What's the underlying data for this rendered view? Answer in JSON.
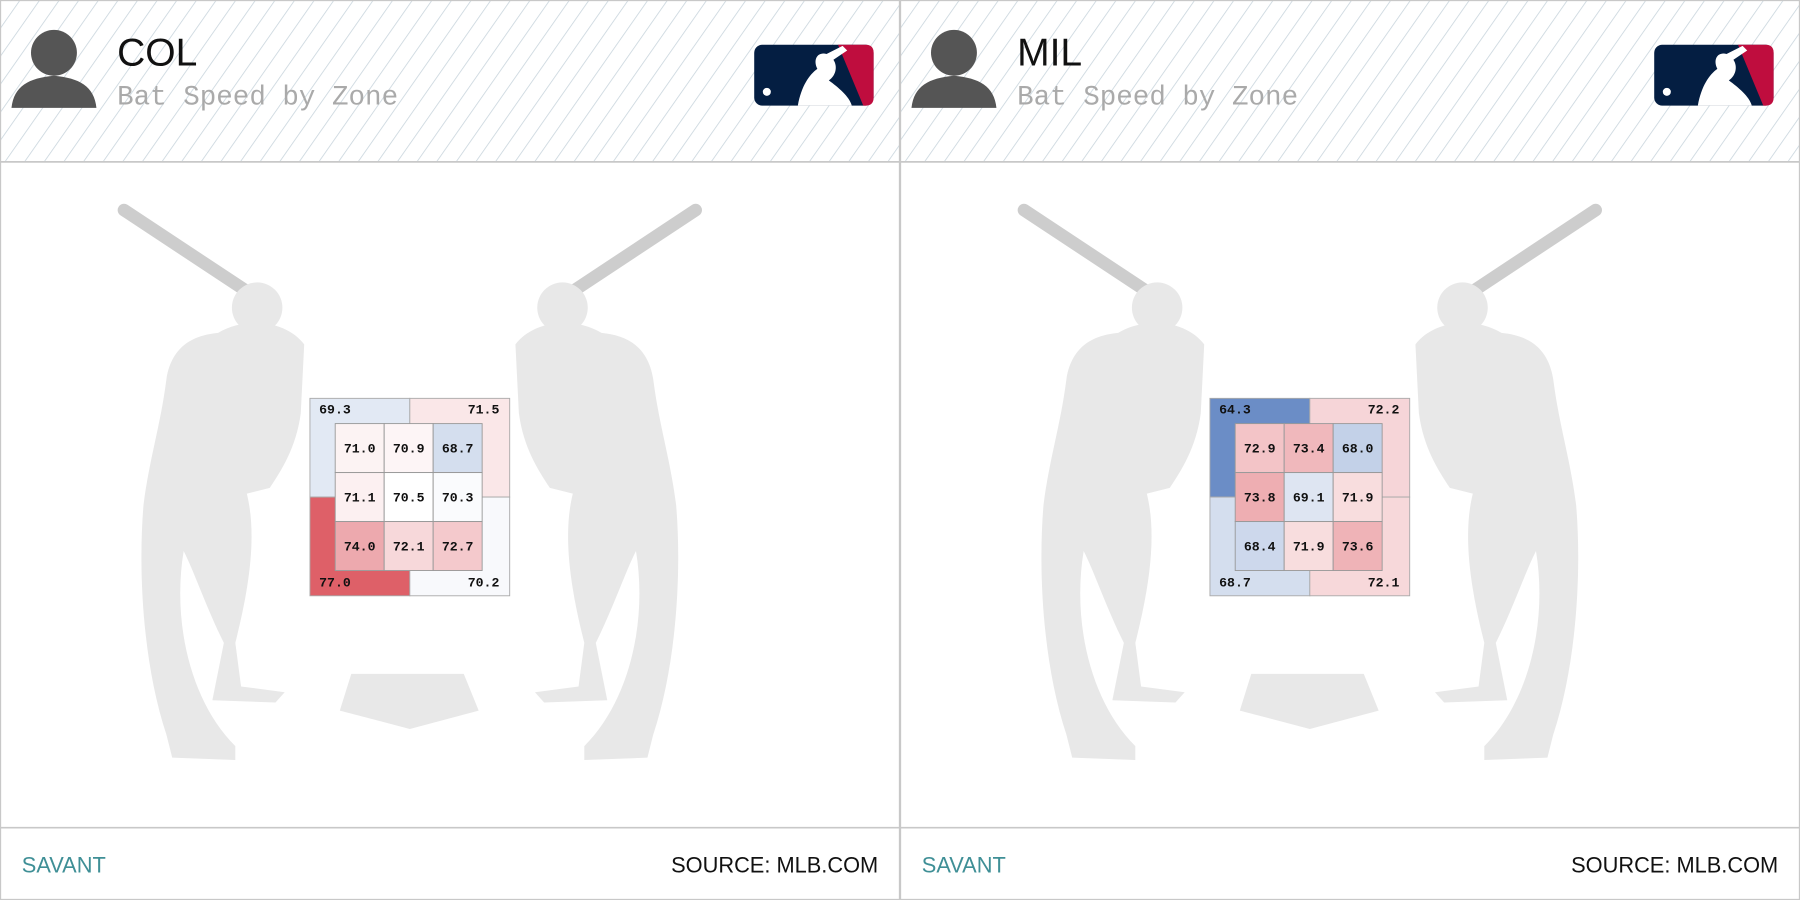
{
  "panels": [
    {
      "team": "COL",
      "subtitle": "Bat Speed by Zone",
      "zones": {
        "inner": [
          [
            "71.0",
            "70.9",
            "68.7"
          ],
          [
            "71.1",
            "70.5",
            "70.3"
          ],
          [
            "74.0",
            "72.1",
            "72.7"
          ]
        ],
        "outer": {
          "top_left": "69.3",
          "top_right": "71.5",
          "bottom_left": "77.0",
          "bottom_right": "70.2"
        }
      },
      "footer_left": "SAVANT",
      "footer_right": "SOURCE: MLB.COM"
    },
    {
      "team": "MIL",
      "subtitle": "Bat Speed by Zone",
      "zones": {
        "inner": [
          [
            "72.9",
            "73.4",
            "68.0"
          ],
          [
            "73.8",
            "69.1",
            "71.9"
          ],
          [
            "68.4",
            "71.9",
            "73.6"
          ]
        ],
        "outer": {
          "top_left": "64.3",
          "top_right": "72.2",
          "bottom_left": "68.7",
          "bottom_right": "72.1"
        }
      },
      "footer_left": "SAVANT",
      "footer_right": "SOURCE: MLB.COM"
    }
  ]
}
